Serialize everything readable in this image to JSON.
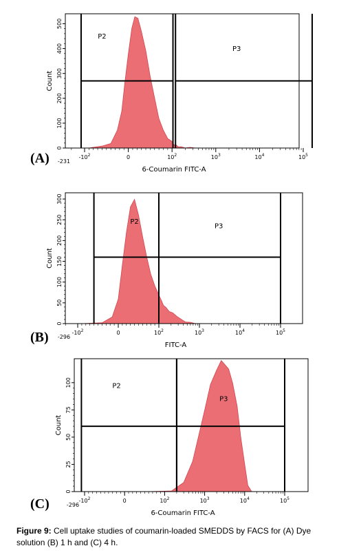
{
  "chart_data": [
    {
      "type": "area",
      "panel_label": "(A)",
      "xlabel": "6-Coumarin FITC-A",
      "ylabel": "Count",
      "scale": "biexponential",
      "x_min_label": "-231",
      "xticks": [
        {
          "label": "-10",
          "sup": "2",
          "value": -100
        },
        {
          "label": "0",
          "sup": "",
          "value": 0
        },
        {
          "label": "10",
          "sup": "2",
          "value": 100
        },
        {
          "label": "10",
          "sup": "3",
          "value": 1000
        },
        {
          "label": "10",
          "sup": "4",
          "value": 10000
        },
        {
          "label": "10",
          "sup": "5",
          "value": 100000
        }
      ],
      "yticks": [
        0,
        100,
        200,
        300,
        400,
        500
      ],
      "ylim": [
        0,
        540
      ],
      "xlim": [
        -231,
        180000
      ],
      "histogram": {
        "x": [
          -140,
          -90,
          -60,
          -40,
          -25,
          -15,
          -8,
          0,
          8,
          15,
          22,
          30,
          40,
          50,
          60,
          70,
          80,
          90,
          100,
          110,
          125,
          140,
          160,
          200,
          260,
          350
        ],
        "y": [
          0,
          2,
          6,
          20,
          70,
          150,
          260,
          380,
          480,
          530,
          520,
          470,
          390,
          290,
          200,
          120,
          70,
          40,
          25,
          15,
          10,
          6,
          4,
          2,
          1,
          0
        ]
      },
      "gates": [
        {
          "name": "P2",
          "x_range": [
            -120,
            105
          ],
          "y": 270
        },
        {
          "name": "P3",
          "x_range": [
            120,
            160000
          ],
          "y": 270
        }
      ],
      "gate_label_positions": {
        "P2": [
          -60,
          440
        ],
        "P3": [
          3000,
          390
        ]
      }
    },
    {
      "type": "area",
      "panel_label": "(B)",
      "xlabel": "FITC-A",
      "ylabel": "Count",
      "scale": "biexponential",
      "x_min_label": "-296",
      "xticks": [
        {
          "label": "-10",
          "sup": "2",
          "value": -100
        },
        {
          "label": "0",
          "sup": "",
          "value": 0
        },
        {
          "label": "10",
          "sup": "2",
          "value": 100
        },
        {
          "label": "10",
          "sup": "3",
          "value": 1000
        },
        {
          "label": "10",
          "sup": "4",
          "value": 10000
        },
        {
          "label": "10",
          "sup": "5",
          "value": 100000
        }
      ],
      "yticks": [
        0,
        50,
        100,
        150,
        200,
        250,
        300
      ],
      "ylim": [
        0,
        315
      ],
      "xlim": [
        -296,
        260000
      ],
      "histogram": {
        "x": [
          -90,
          -40,
          -15,
          0,
          10,
          20,
          30,
          40,
          50,
          60,
          70,
          80,
          90,
          100,
          115,
          130,
          150,
          180,
          220,
          280,
          350,
          450,
          600,
          800
        ],
        "y": [
          0,
          3,
          15,
          60,
          140,
          220,
          280,
          300,
          260,
          210,
          160,
          120,
          90,
          70,
          55,
          45,
          38,
          30,
          25,
          18,
          10,
          5,
          2,
          0
        ]
      },
      "gates": [
        {
          "name": "P2",
          "x_range": [
            -60,
            100
          ],
          "y": 160
        },
        {
          "name": "P3",
          "x_range": [
            100,
            100000
          ],
          "y": 160
        }
      ],
      "gate_label_positions": {
        "P2": [
          40,
          240
        ],
        "P3": [
          3000,
          230
        ]
      }
    },
    {
      "type": "area",
      "panel_label": "(C)",
      "xlabel": "6-Coumarin FITC-A",
      "ylabel": "Count",
      "scale": "biexponential",
      "x_min_label": "-296",
      "xticks": [
        {
          "label": "-10",
          "sup": "2",
          "value": -100
        },
        {
          "label": "0",
          "sup": "",
          "value": 0
        },
        {
          "label": "10",
          "sup": "2",
          "value": 100
        },
        {
          "label": "10",
          "sup": "3",
          "value": 1000
        },
        {
          "label": "10",
          "sup": "4",
          "value": 10000
        },
        {
          "label": "10",
          "sup": "5",
          "value": 100000
        }
      ],
      "yticks": [
        0,
        25,
        50,
        75,
        100
      ],
      "ylim": [
        0,
        122
      ],
      "xlim": [
        -296,
        260000
      ],
      "histogram": {
        "x": [
          60,
          150,
          300,
          500,
          700,
          1000,
          1400,
          2000,
          2600,
          3200,
          4000,
          5000,
          6500,
          8000,
          10000,
          12000,
          15000
        ],
        "y": [
          0,
          1,
          8,
          28,
          50,
          75,
          98,
          112,
          120,
          117,
          112,
          100,
          78,
          50,
          25,
          6,
          0
        ]
      },
      "gates": [
        {
          "name": "P2",
          "x_range": [
            -120,
            200
          ],
          "y": 60
        },
        {
          "name": "P3",
          "x_range": [
            200,
            100000
          ],
          "y": 60
        }
      ],
      "gate_label_positions": {
        "P2": [
          -20,
          95
        ],
        "P3": [
          3000,
          83
        ]
      }
    }
  ],
  "caption": {
    "prefix": "Figure 9:",
    "text": " Cell uptake studies of coumarin-loaded SMEDDS by FACS for (A) Dye solution (B) 1 h and (C) 4 h."
  },
  "colors": {
    "histogram_fill": "#eb6e75",
    "histogram_stroke": "#d4454d",
    "gate": "#000000"
  }
}
